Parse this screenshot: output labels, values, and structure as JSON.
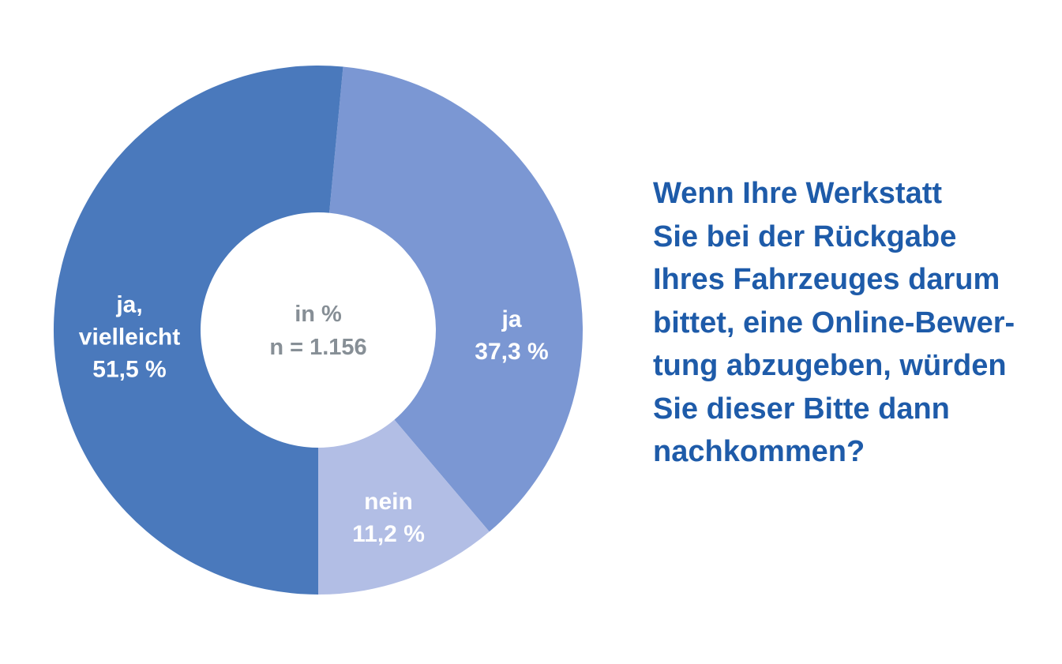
{
  "colors": {
    "background": "#ffffff",
    "question_text": "#1e5ba9",
    "center_text": "#878f96",
    "segment_label_text": "#ffffff"
  },
  "chart_data": {
    "type": "pie",
    "subtype": "donut",
    "unit": "%",
    "direction": "clockwise",
    "start_angle_deg": 5.4,
    "center_note": {
      "line1": "in %",
      "line2": "n = 1.156"
    },
    "segments": [
      {
        "id": "ja",
        "label": "ja",
        "value": 37.3,
        "value_label": "37,3 %",
        "color": "#7b97d3",
        "label_lines": [
          "ja",
          "37,3 %"
        ]
      },
      {
        "id": "nein",
        "label": "nein",
        "value": 11.2,
        "value_label": "11,2 %",
        "color": "#b2bee5",
        "label_lines": [
          "nein",
          "11,2 %"
        ]
      },
      {
        "id": "ja-vielleicht",
        "label": "ja, vielleicht",
        "value": 51.5,
        "value_label": "51,5 %",
        "color": "#4a79bc",
        "label_lines": [
          "ja,",
          "vielleicht",
          "51,5 %"
        ]
      }
    ]
  },
  "question": {
    "lines": [
      "Wenn Ihre Werkstatt",
      "Sie bei der Rückgabe",
      "Ihres Fahrzeuges darum",
      "bittet, eine Online-Bewer-",
      "tung abzugeben, würden",
      "Sie dieser Bitte dann",
      "nachkommen?"
    ]
  }
}
